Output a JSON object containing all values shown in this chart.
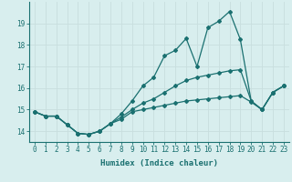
{
  "xlabel": "Humidex (Indice chaleur)",
  "background_color": "#d8eeee",
  "grid_color": "#c8dede",
  "line_color": "#1a7070",
  "x": [
    0,
    1,
    2,
    3,
    4,
    5,
    6,
    7,
    8,
    9,
    10,
    11,
    12,
    13,
    14,
    15,
    16,
    17,
    18,
    19,
    20,
    21,
    22,
    23
  ],
  "line1": [
    14.9,
    14.7,
    14.7,
    14.3,
    13.9,
    13.85,
    14.0,
    14.35,
    14.55,
    14.9,
    15.0,
    15.1,
    15.2,
    15.3,
    15.4,
    15.45,
    15.5,
    15.55,
    15.6,
    15.65,
    15.35,
    15.0,
    15.8,
    16.1
  ],
  "line2": [
    14.9,
    14.7,
    14.7,
    14.3,
    13.9,
    13.85,
    14.0,
    14.35,
    14.8,
    15.4,
    16.1,
    16.5,
    17.5,
    17.75,
    18.3,
    17.0,
    18.8,
    19.1,
    19.55,
    18.25,
    15.4,
    15.0,
    15.8,
    16.1
  ],
  "line3": [
    14.9,
    14.7,
    14.7,
    14.3,
    13.9,
    13.85,
    14.0,
    14.35,
    14.65,
    15.0,
    15.3,
    15.5,
    15.8,
    16.1,
    16.35,
    16.5,
    16.6,
    16.7,
    16.8,
    16.85,
    15.4,
    15.0,
    15.8,
    16.1
  ],
  "ylim": [
    13.5,
    20.0
  ],
  "xlim": [
    -0.5,
    23.5
  ],
  "yticks": [
    14,
    15,
    16,
    17,
    18,
    19
  ],
  "xticks": [
    0,
    1,
    2,
    3,
    4,
    5,
    6,
    7,
    8,
    9,
    10,
    11,
    12,
    13,
    14,
    15,
    16,
    17,
    18,
    19,
    20,
    21,
    22,
    23
  ]
}
